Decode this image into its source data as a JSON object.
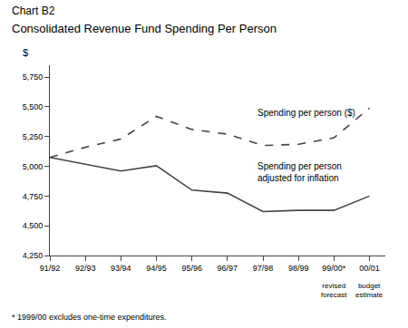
{
  "chart_data": {
    "type": "line",
    "subtitle": "Chart B2",
    "title": "Consolidated Revenue Fund Spending Per Person",
    "ylabel": "$",
    "categories": [
      "91/92",
      "92/93",
      "93/94",
      "94/95",
      "95/96",
      "96/97",
      "97/98",
      "98/99",
      "99/00*",
      "00/01"
    ],
    "series": [
      {
        "color": "#444444",
        "line_style": "dashed",
        "values": [
          5075,
          5160,
          5230,
          5420,
          5310,
          5270,
          5175,
          5185,
          5240,
          5490
        ]
      },
      {
        "color": "#444444",
        "line_style": "solid",
        "values": [
          5075,
          5020,
          4960,
          5005,
          4800,
          4775,
          4620,
          4630,
          4630,
          4750
        ]
      }
    ],
    "ylim": [
      4250,
      5850
    ],
    "yticks": [
      {
        "value": 4250,
        "label": "4,250"
      },
      {
        "value": 4500,
        "label": "4,500"
      },
      {
        "value": 4750,
        "label": "4,750"
      },
      {
        "value": 5000,
        "label": "5,000"
      },
      {
        "value": 5250,
        "label": "5,250"
      },
      {
        "value": 5500,
        "label": "5,500"
      },
      {
        "value": 5750,
        "label": "5,750"
      }
    ],
    "grid": false,
    "annotations": [
      "Spending per person ($)",
      "Spending per person\nadjusted for inflation",
      "revised\nforecast",
      "budget\nestimate",
      "* 1999/00 excludes one-time expenditures."
    ]
  }
}
